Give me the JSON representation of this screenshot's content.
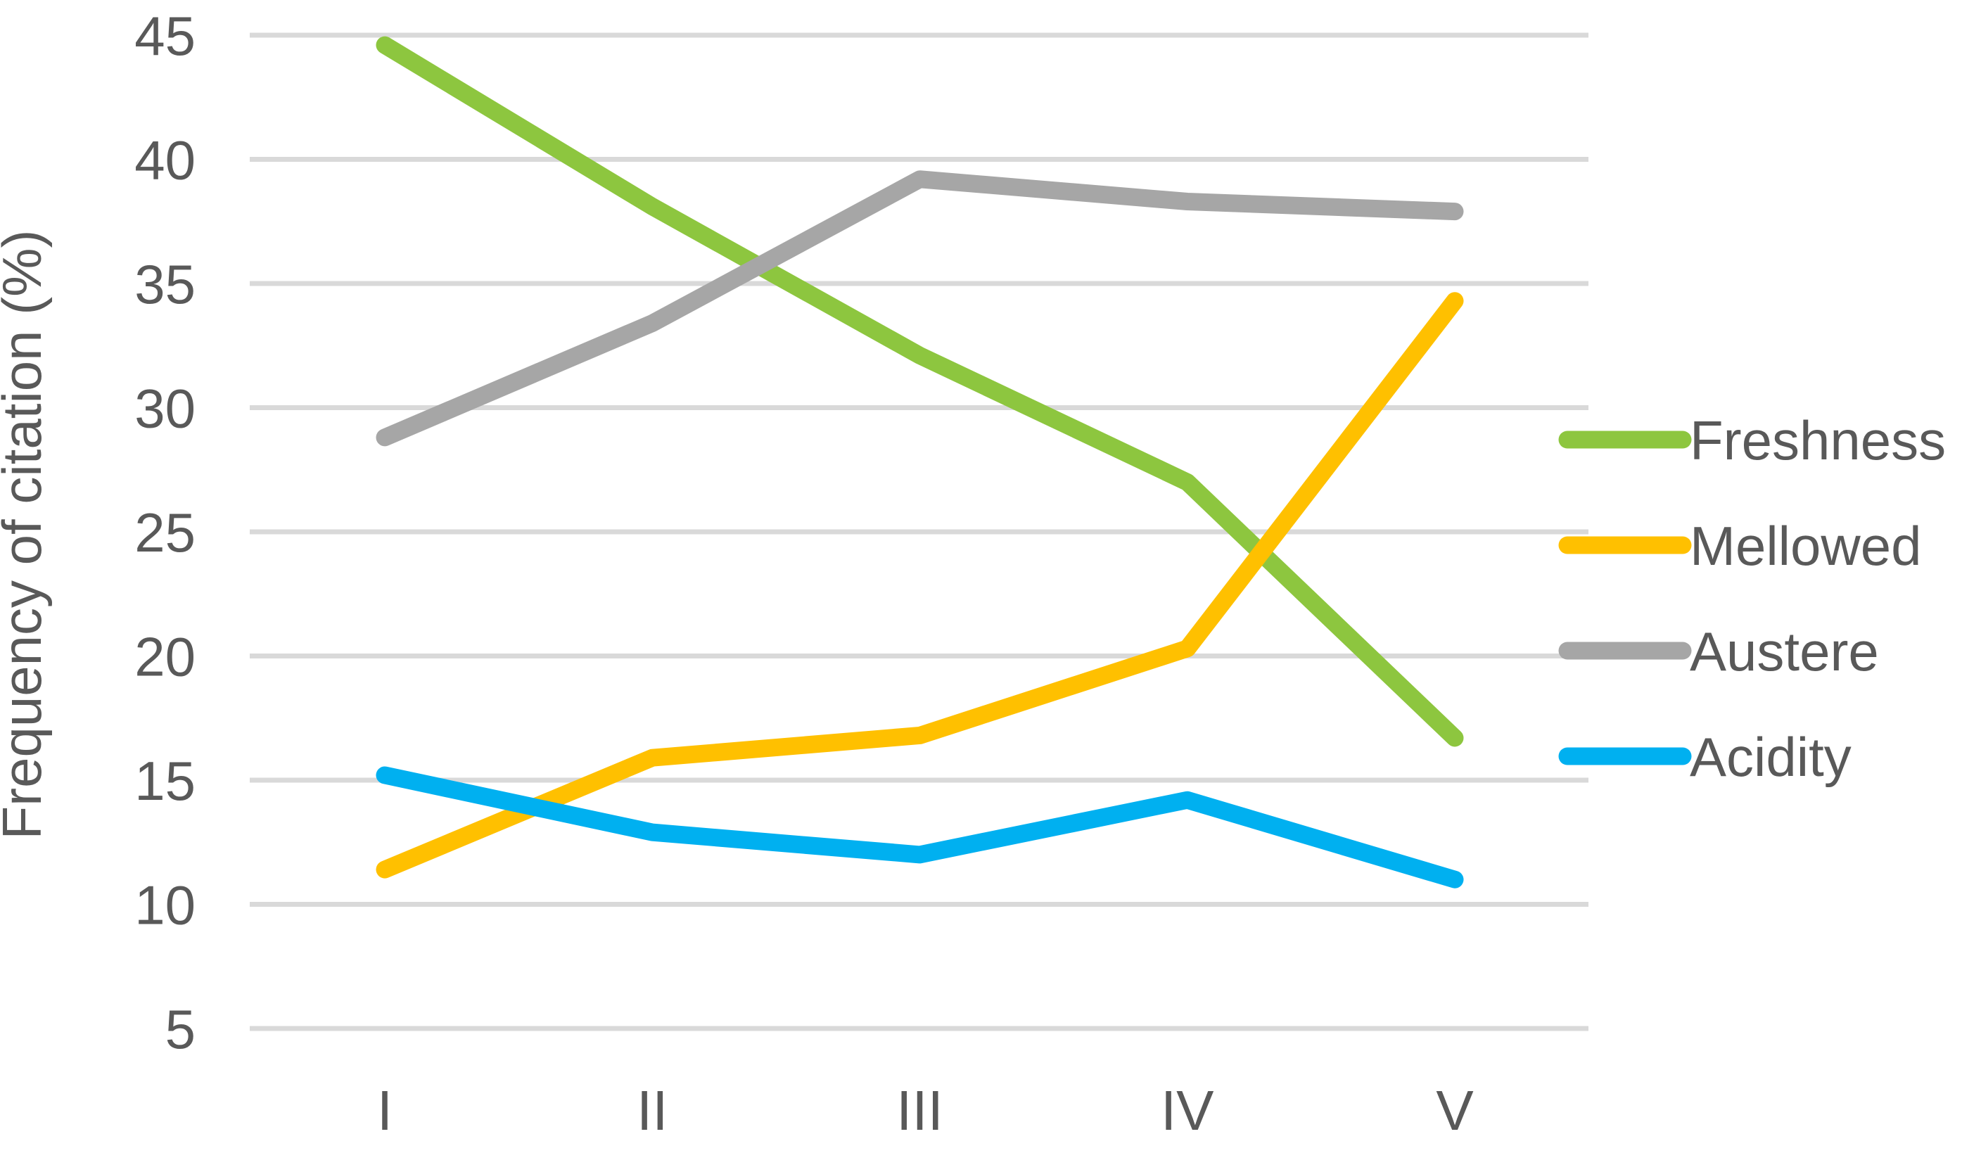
{
  "chart_data": {
    "type": "line",
    "title": "",
    "categories": [
      "I",
      "II",
      "III",
      "IV",
      "V"
    ],
    "series": [
      {
        "name": "Freshness",
        "color": "#8dc63f",
        "values": [
          44.6,
          38.1,
          32.1,
          27.0,
          16.7
        ]
      },
      {
        "name": "Mellowed",
        "color": "#ffc000",
        "values": [
          11.4,
          15.9,
          16.8,
          20.3,
          34.3
        ]
      },
      {
        "name": "Austere",
        "color": "#a6a6a6",
        "values": [
          28.8,
          33.4,
          39.2,
          38.3,
          37.9
        ]
      },
      {
        "name": "Acidity",
        "color": "#00b0f0",
        "values": [
          15.2,
          12.9,
          12.0,
          14.2,
          11.0
        ]
      }
    ],
    "xlabel": "",
    "ylabel": "Frequency of citation (%)",
    "yticks": [
      5,
      10,
      15,
      20,
      25,
      30,
      35,
      40,
      45
    ],
    "ylim": [
      3.7,
      45.6
    ],
    "grid": true,
    "legend_position": "right",
    "legend_labels": [
      "Freshness",
      "Mellowed",
      "Austere",
      "Acidity"
    ]
  },
  "colors": {
    "gridline": "#d9d9d9",
    "axis_text": "#595959",
    "background": "#ffffff"
  }
}
